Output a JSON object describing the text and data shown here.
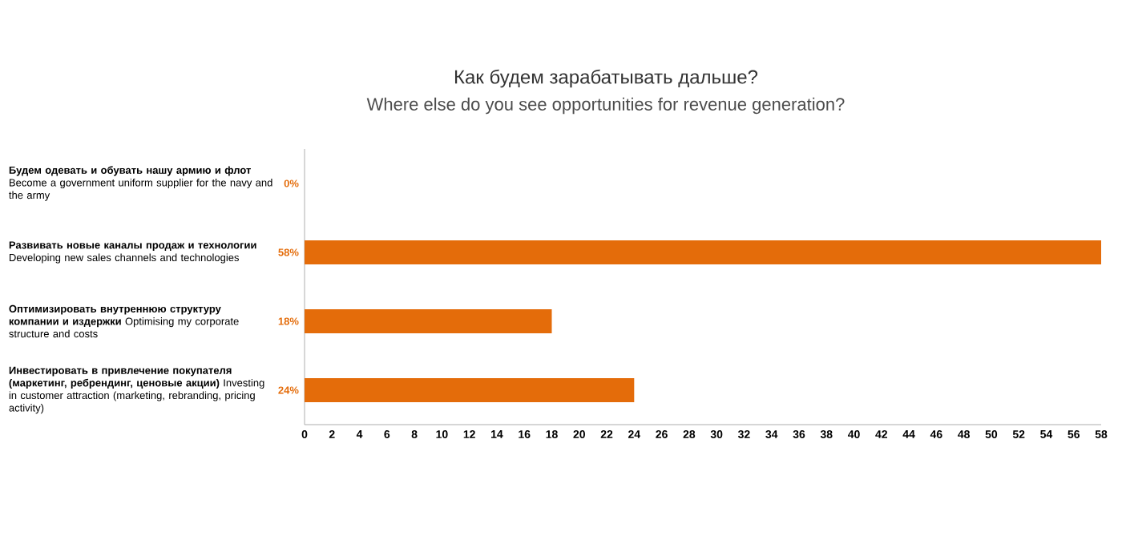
{
  "chart_data": {
    "type": "bar",
    "orientation": "horizontal",
    "title": "Как будем зарабатывать дальше?",
    "subtitle": "Where else do you see opportunities for revenue generation?",
    "categories": [
      "**Будем одевать и обувать нашу армию и флот** Become a government uniform supplier for the navy and the army",
      "**Развивать новые каналы продаж и технологии** Developing new sales channels and technologies",
      "**Оптимизировать внутреннюю структуру компании и издержки** Optimising my corporate structure and costs",
      "**Инвестировать в привлечение покупателя (маркетинг, ребрендинг, ценовые акции)** Investing in customer attraction (marketing, rebranding, pricing activity)"
    ],
    "values": [
      0,
      58,
      18,
      24
    ],
    "value_labels": [
      "0%",
      "58%",
      "18%",
      "24%"
    ],
    "color": "#e46c0a",
    "xlim": [
      0,
      58
    ],
    "xticks": [
      0,
      2,
      4,
      6,
      8,
      10,
      12,
      14,
      16,
      18,
      20,
      22,
      24,
      26,
      28,
      30,
      32,
      34,
      36,
      38,
      40,
      42,
      44,
      46,
      48,
      50,
      52,
      54,
      56,
      58
    ]
  }
}
